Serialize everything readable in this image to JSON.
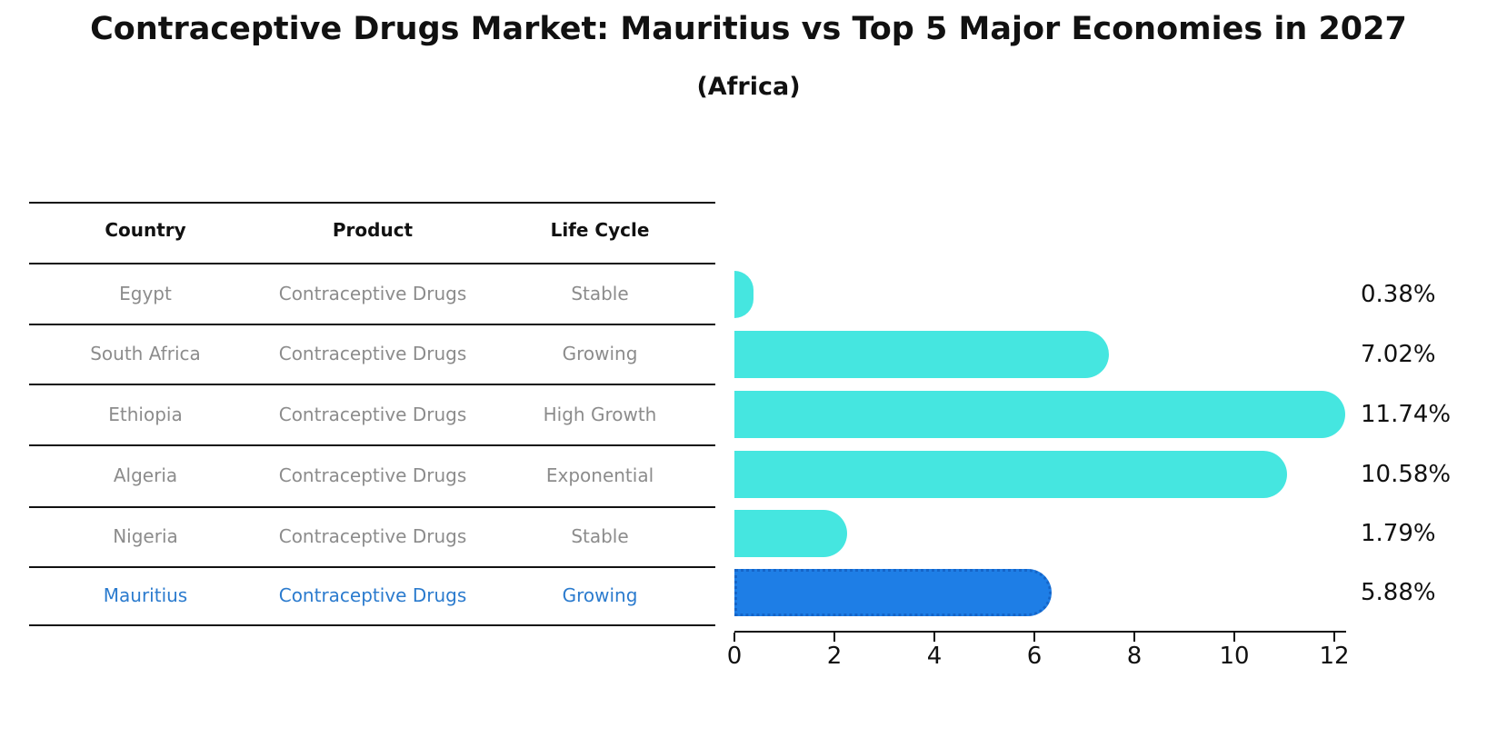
{
  "title": "Contraceptive Drugs Market: Mauritius vs Top 5 Major Economies in 2027",
  "subtitle": "(Africa)",
  "table": {
    "headers": [
      "Country",
      "Product",
      "Life Cycle"
    ],
    "rows": [
      {
        "country": "Egypt",
        "product": "Contraceptive Drugs",
        "life_cycle": "Stable",
        "highlight": false
      },
      {
        "country": "South Africa",
        "product": "Contraceptive Drugs",
        "life_cycle": "Growing",
        "highlight": false
      },
      {
        "country": "Ethiopia",
        "product": "Contraceptive Drugs",
        "life_cycle": "High Growth",
        "highlight": false
      },
      {
        "country": "Algeria",
        "product": "Contraceptive Drugs",
        "life_cycle": "Exponential",
        "highlight": false
      },
      {
        "country": "Nigeria",
        "product": "Contraceptive Drugs",
        "life_cycle": "Stable",
        "highlight": true
      }
    ],
    "highlight_row": {
      "country": "Mauritius",
      "product": "Contraceptive Drugs",
      "life_cycle": "Growing"
    }
  },
  "chart_data": {
    "type": "bar",
    "orientation": "horizontal",
    "categories": [
      "Egypt",
      "South Africa",
      "Ethiopia",
      "Algeria",
      "Nigeria",
      "Mauritius"
    ],
    "values": [
      0.38,
      7.02,
      11.74,
      10.58,
      1.79,
      5.88
    ],
    "labels": [
      "0.38%",
      "7.02%",
      "11.74%",
      "10.58%",
      "1.79%",
      "5.88%"
    ],
    "highlight_index": 5,
    "xlim": [
      0,
      12
    ],
    "xticks": [
      0,
      2,
      4,
      6,
      8,
      10,
      12
    ],
    "grid": false,
    "legend": "none",
    "title": "Contraceptive Drugs Market: Mauritius vs Top 5 Major Economies in 2027 (Africa)",
    "xlabel": "",
    "ylabel": ""
  },
  "colors": {
    "bar": "#45e6e0",
    "highlight_bar": "#1e7ee6",
    "highlight_border": "#1565c8",
    "highlight_text": "#2b7bce",
    "muted_text": "#8c8c8c",
    "text": "#111111"
  }
}
